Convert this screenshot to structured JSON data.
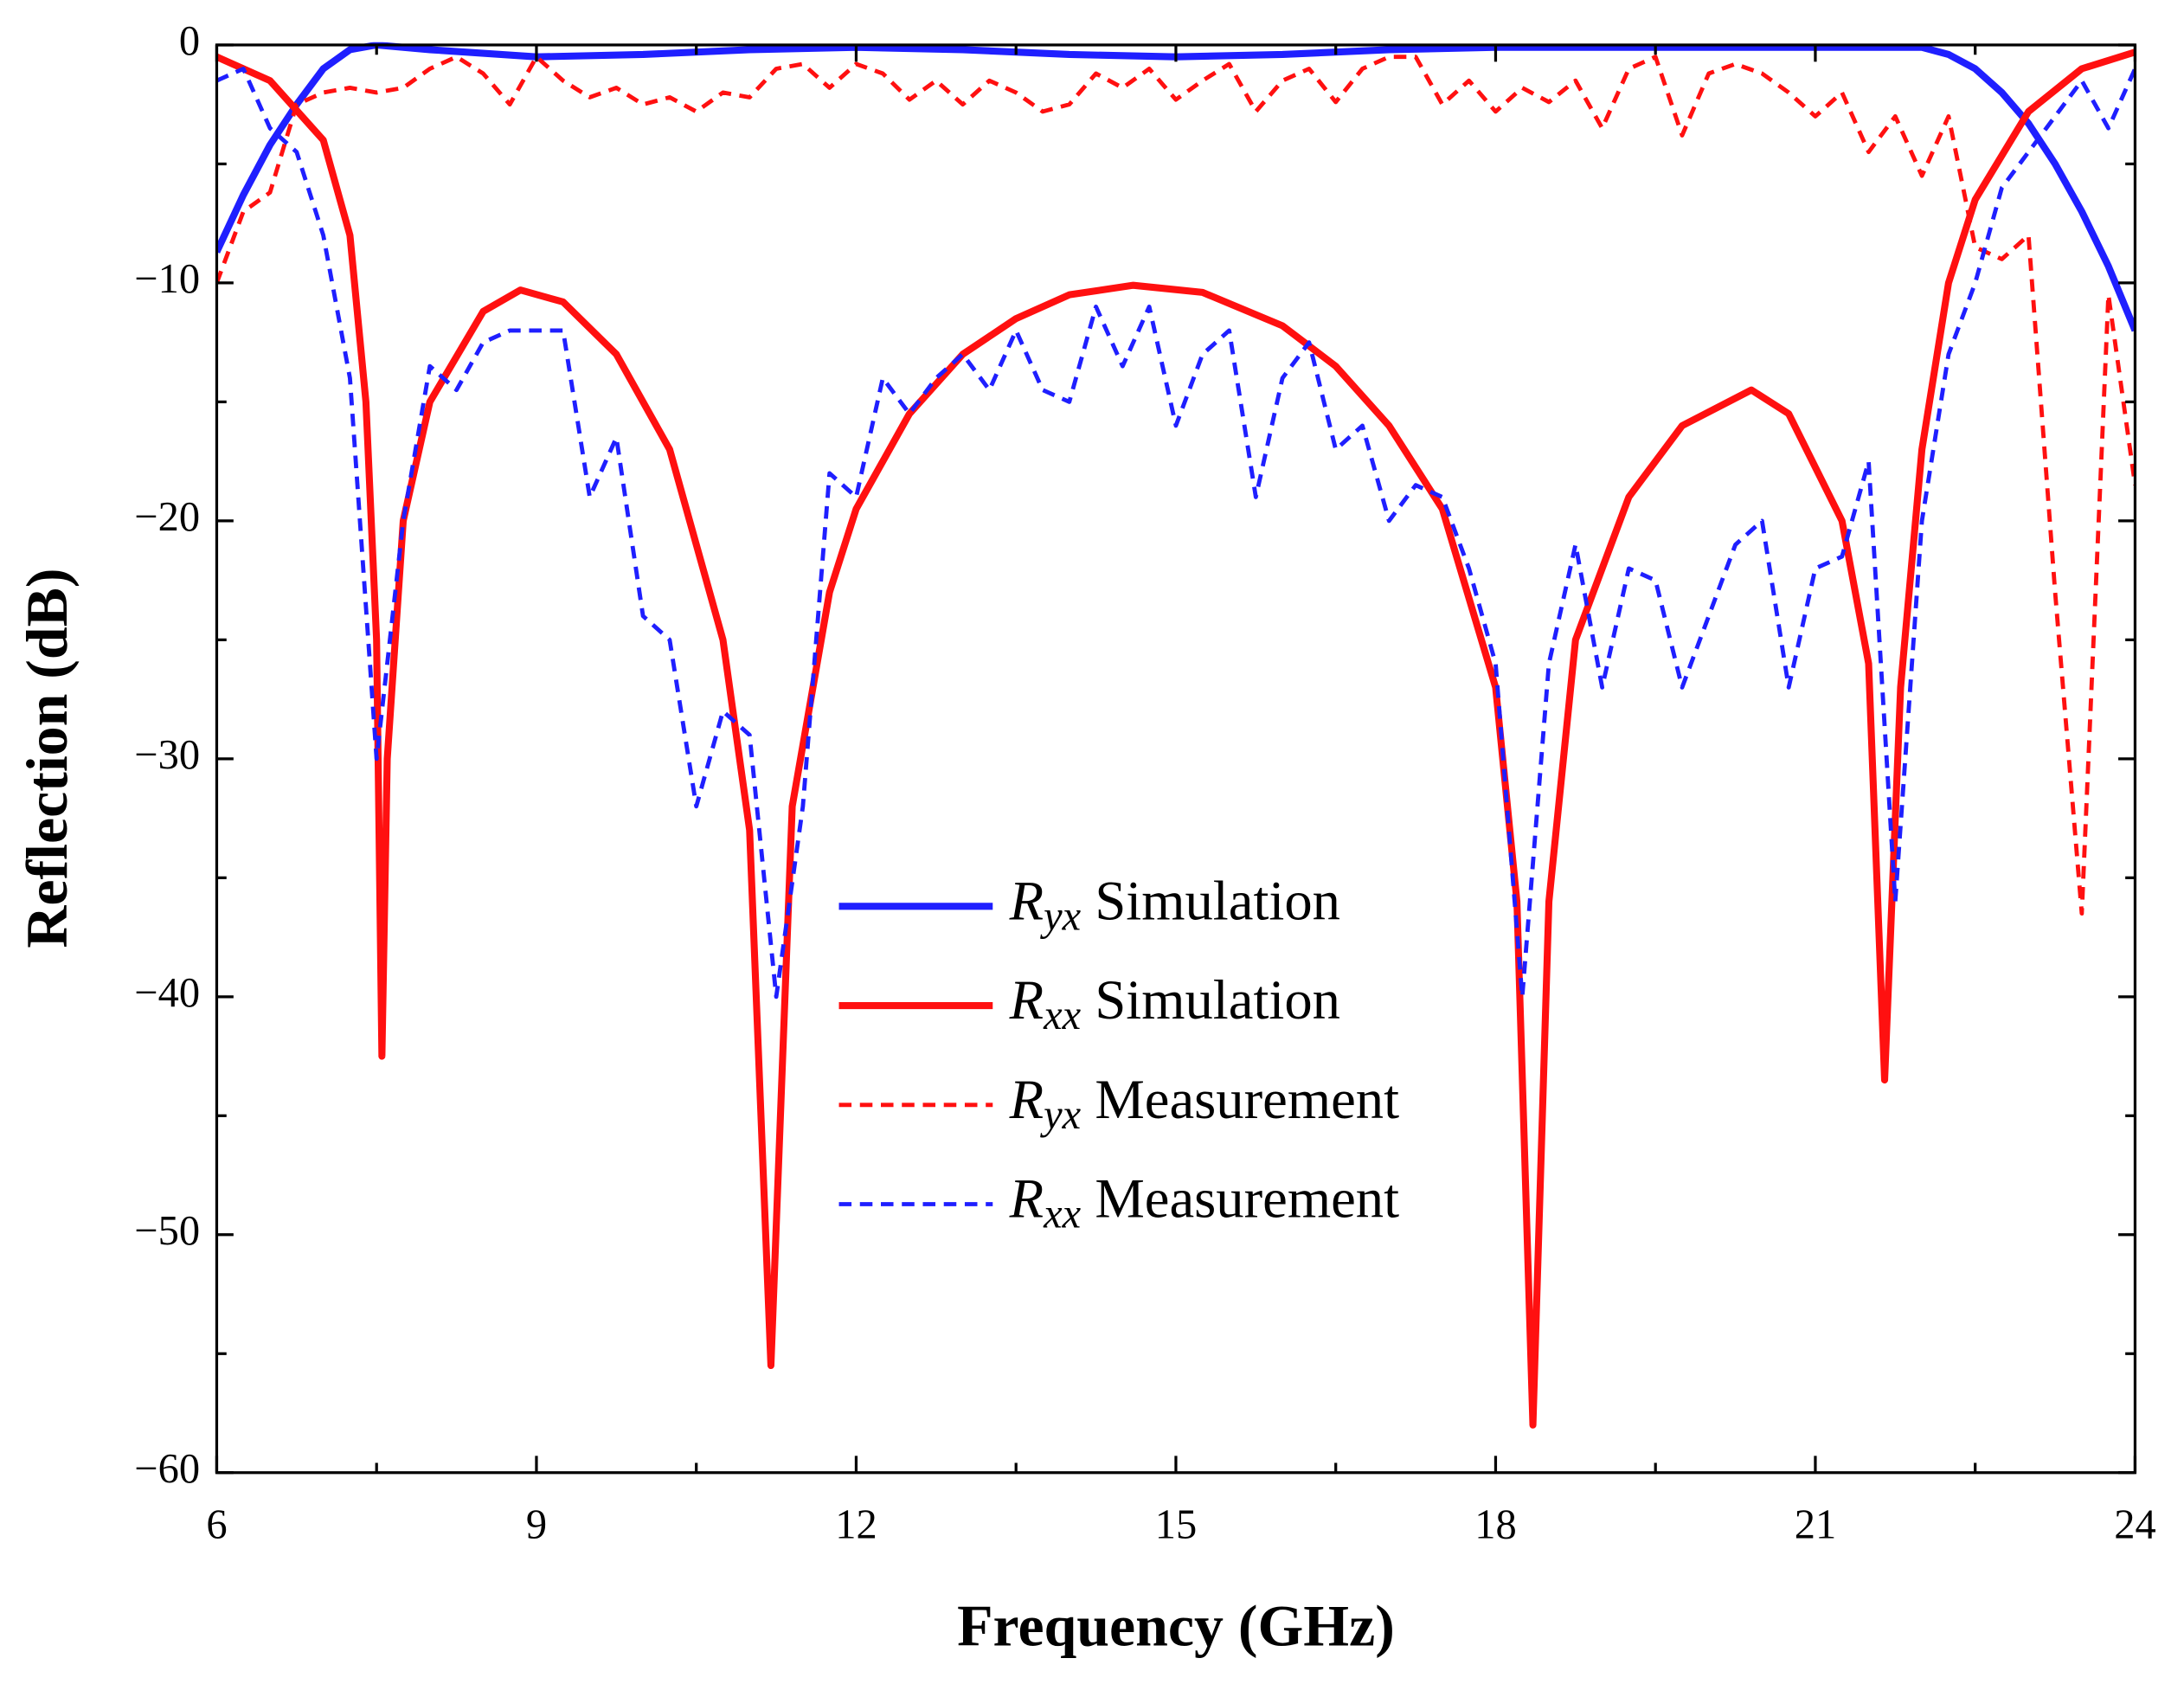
{
  "chart_data": {
    "type": "line",
    "xlabel": "Frequency (GHz)",
    "ylabel": "Reflection (dB)",
    "xlim": [
      6,
      24
    ],
    "ylim": [
      -60,
      0
    ],
    "xticks": [
      6,
      9,
      12,
      15,
      18,
      21,
      24
    ],
    "xminor": [
      7.5,
      10.5,
      13.5,
      16.5,
      19.5,
      22.5
    ],
    "yticks": [
      {
        "value": -60,
        "label": "−60"
      },
      {
        "value": -50,
        "label": "−50"
      },
      {
        "value": -40,
        "label": "−40"
      },
      {
        "value": -30,
        "label": "−30"
      },
      {
        "value": -20,
        "label": "−20"
      },
      {
        "value": -10,
        "label": "−10"
      },
      0
    ],
    "yminor": [
      -55,
      -45,
      -35,
      -25,
      -15,
      -5
    ],
    "series": [
      {
        "name": "Ryx Simulation",
        "color": "#1f1fff",
        "dash": false,
        "x": [
          6,
          6.25,
          6.5,
          6.75,
          7,
          7.25,
          7.5,
          8,
          9,
          10,
          11,
          12,
          13,
          14,
          15,
          16,
          17,
          18,
          19,
          20,
          21,
          22,
          22.25,
          22.5,
          22.75,
          23,
          23.25,
          23.5,
          23.75,
          24
        ],
        "values": [
          -8.7,
          -6.3,
          -4.2,
          -2.5,
          -1.0,
          -0.2,
          0,
          -0.2,
          -0.5,
          -0.4,
          -0.2,
          -0.1,
          -0.2,
          -0.4,
          -0.5,
          -0.4,
          -0.2,
          -0.1,
          -0.1,
          -0.1,
          -0.1,
          -0.1,
          -0.4,
          -1.0,
          -2.0,
          -3.3,
          -5.0,
          -7.0,
          -9.3,
          -12
        ]
      },
      {
        "name": "Rxx Simulation",
        "color": "#ff1010",
        "dash": false,
        "x": [
          6,
          6.5,
          7,
          7.25,
          7.4,
          7.5,
          7.55,
          7.6,
          7.75,
          8,
          8.5,
          8.85,
          9.25,
          9.75,
          10.25,
          10.75,
          11,
          11.2,
          11.4,
          11.75,
          12,
          12.5,
          13,
          13.5,
          14,
          14.6,
          15.25,
          16,
          16.5,
          17,
          17.5,
          18,
          18.2,
          18.35,
          18.5,
          18.75,
          19.25,
          19.75,
          20.4,
          20.75,
          21.25,
          21.5,
          21.65,
          21.8,
          22,
          22.25,
          22.5,
          23,
          23.5,
          24
        ],
        "values": [
          -0.5,
          -1.5,
          -4,
          -8,
          -15,
          -25,
          -42.5,
          -30,
          -20,
          -15,
          -11.2,
          -10.3,
          -10.8,
          -13,
          -17,
          -25,
          -33,
          -55.5,
          -32,
          -23,
          -19.5,
          -15.5,
          -13,
          -11.5,
          -10.5,
          -10.1,
          -10.4,
          -11.8,
          -13.5,
          -16,
          -19.5,
          -27,
          -36,
          -58,
          -36,
          -25,
          -19,
          -16,
          -14.5,
          -15.5,
          -20,
          -26,
          -43.5,
          -27,
          -17,
          -10,
          -6.5,
          -2.8,
          -1,
          -0.3
        ]
      },
      {
        "name": "Ryx Measurement",
        "color": "#ff1010",
        "dash": true,
        "x": [
          6,
          6.25,
          6.5,
          6.75,
          7,
          7.25,
          7.5,
          7.75,
          8,
          8.25,
          8.5,
          8.75,
          9,
          9.25,
          9.5,
          9.75,
          10,
          10.25,
          10.5,
          10.75,
          11,
          11.25,
          11.5,
          11.75,
          12,
          12.25,
          12.5,
          12.75,
          13,
          13.25,
          13.5,
          13.75,
          14,
          14.25,
          14.5,
          14.75,
          15,
          15.25,
          15.5,
          15.75,
          16,
          16.25,
          16.5,
          16.75,
          17,
          17.25,
          17.5,
          17.75,
          18,
          18.25,
          18.5,
          18.75,
          19,
          19.25,
          19.5,
          19.75,
          20,
          20.25,
          20.5,
          20.75,
          21,
          21.25,
          21.5,
          21.75,
          22,
          22.25,
          22.5,
          22.75,
          23,
          23.25,
          23.5,
          23.75,
          24
        ],
        "values": [
          -10,
          -7,
          -6.2,
          -2.5,
          -2,
          -1.8,
          -2,
          -1.8,
          -1,
          -0.5,
          -1.2,
          -2.5,
          -0.5,
          -1.5,
          -2.2,
          -1.8,
          -2.5,
          -2.2,
          -2.8,
          -2,
          -2.2,
          -1,
          -0.8,
          -1.8,
          -0.8,
          -1.2,
          -2.3,
          -1.5,
          -2.5,
          -1.5,
          -2,
          -2.8,
          -2.5,
          -1.2,
          -1.8,
          -1,
          -2.3,
          -1.5,
          -0.8,
          -2.8,
          -1.5,
          -1,
          -2.4,
          -1,
          -0.5,
          -0.5,
          -2.5,
          -1.5,
          -2.8,
          -1.8,
          -2.4,
          -1.5,
          -3.5,
          -1,
          -0.5,
          -3.8,
          -1.2,
          -0.8,
          -1.2,
          -2,
          -3,
          -2,
          -4.5,
          -3,
          -5.5,
          -3,
          -8.5,
          -9,
          -8,
          -23,
          -36.5,
          -10.5,
          -18.5
        ]
      },
      {
        "name": "Rxx Measurement",
        "color": "#1f1fff",
        "dash": true,
        "x": [
          6,
          6.25,
          6.5,
          6.75,
          7,
          7.25,
          7.5,
          7.75,
          8,
          8.25,
          8.5,
          8.75,
          9,
          9.25,
          9.5,
          9.75,
          10,
          10.25,
          10.5,
          10.75,
          11,
          11.25,
          11.5,
          11.75,
          12,
          12.25,
          12.5,
          12.75,
          13,
          13.25,
          13.5,
          13.75,
          14,
          14.25,
          14.5,
          14.75,
          15,
          15.25,
          15.5,
          15.75,
          16,
          16.25,
          16.5,
          16.75,
          17,
          17.25,
          17.5,
          17.75,
          18,
          18.25,
          18.5,
          18.75,
          19,
          19.25,
          19.5,
          19.75,
          20,
          20.25,
          20.5,
          20.75,
          21,
          21.25,
          21.5,
          21.75,
          22,
          22.25,
          22.5,
          22.75,
          23,
          23.25,
          23.5,
          23.75,
          24
        ],
        "values": [
          -1.5,
          -1,
          -3.5,
          -4.5,
          -8,
          -14,
          -30,
          -20,
          -13.5,
          -14.5,
          -12.5,
          -12,
          -12,
          -12,
          -19,
          -16.5,
          -24,
          -25,
          -32,
          -28,
          -29,
          -40,
          -32,
          -18,
          -19,
          -14,
          -15.5,
          -14,
          -13,
          -14.5,
          -12,
          -14.5,
          -15,
          -11,
          -13.5,
          -11,
          -16,
          -13,
          -12,
          -19,
          -14,
          -12.5,
          -17,
          -16,
          -20,
          -18.5,
          -19,
          -22,
          -26,
          -40,
          -26,
          -21,
          -27,
          -22,
          -22.5,
          -27,
          -24,
          -21,
          -20,
          -27,
          -22,
          -21.5,
          -17.5,
          -36,
          -20,
          -13,
          -10,
          -6,
          -4.5,
          -3,
          -1.5,
          -3.5,
          -1
        ]
      }
    ]
  }
}
